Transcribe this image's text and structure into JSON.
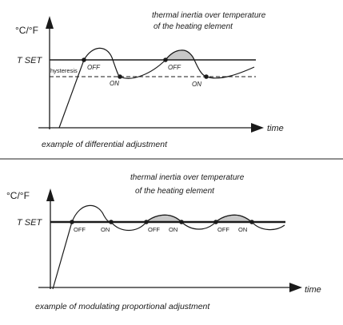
{
  "top_diagram": {
    "unit_label": "°C/°F",
    "set_label": "T SET",
    "hysteresis_label": "hysteresis",
    "time_label": "time",
    "inertia_line1": "thermal inertia over temperature",
    "inertia_line2": "of the heating element",
    "off_label": "OFF",
    "on_label": "ON",
    "caption": "example of differential adjustment"
  },
  "bottom_diagram": {
    "unit_label": "°C/°F",
    "set_label": "T SET",
    "time_label": "time",
    "inertia_line1": "thermal inertia over temperature",
    "inertia_line2": "of the heating element",
    "off_label": "OFF",
    "on_label": "ON",
    "caption": "example of modulating proportional adjustment"
  }
}
